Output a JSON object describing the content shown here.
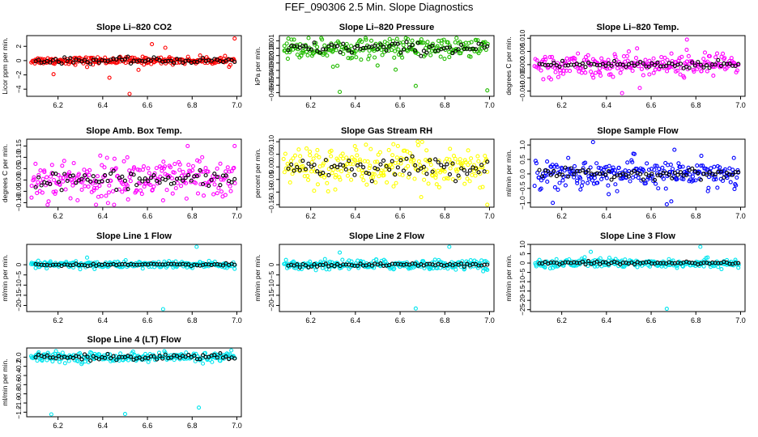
{
  "main_title": "FEF_090306  2.5 Min. Slope Diagnostics",
  "chart_data": [
    {
      "type": "scatter",
      "title": "Slope Li–820 CO2",
      "ylabel": "Licor ppm per min.",
      "xlim": [
        6.06,
        7.02
      ],
      "ylim": [
        -5,
        3.5
      ],
      "xticks": [
        "6.2",
        "6.4",
        "6.6",
        "6.8",
        "7.0"
      ],
      "yticks": [
        {
          "v": 2,
          "l": "2"
        },
        {
          "v": 0,
          "l": "0"
        },
        {
          "v": -2,
          "l": "−2"
        },
        {
          "v": -4,
          "l": "−4"
        }
      ],
      "color": "#ff0000",
      "spread": 0.25,
      "outliers": [
        [
          6.99,
          3.1
        ],
        [
          6.62,
          2.3
        ],
        [
          6.68,
          1.8
        ],
        [
          6.18,
          -1.9
        ],
        [
          6.43,
          -2.4
        ],
        [
          6.56,
          -1.3
        ],
        [
          6.33,
          -0.9
        ],
        [
          6.52,
          -4.7
        ]
      ],
      "base_amp": 0.2
    },
    {
      "type": "scatter",
      "title": "Slope Li–820 Pressure",
      "ylabel": "kPa per min.",
      "xlim": [
        6.06,
        7.02
      ],
      "ylim": [
        -0.065,
        0.017
      ],
      "xticks": [
        "6.2",
        "6.4",
        "6.6",
        "6.8",
        "7.0"
      ],
      "yticks": [
        {
          "v": 0.01,
          "l": "0.01"
        },
        {
          "v": 0,
          "l": "0.00"
        },
        {
          "v": -0.01,
          "l": "−0.01"
        },
        {
          "v": -0.02,
          "l": "−0.02"
        },
        {
          "v": -0.03,
          "l": "−0.03"
        },
        {
          "v": -0.04,
          "l": "−0.04"
        },
        {
          "v": -0.05,
          "l": "−0.05"
        },
        {
          "v": -0.06,
          "l": "−0.06"
        }
      ],
      "color": "#22bb00",
      "spread": 0.007,
      "outliers": [
        [
          6.1,
          0.013
        ],
        [
          6.33,
          -0.059
        ],
        [
          6.67,
          -0.051
        ],
        [
          6.99,
          -0.057
        ],
        [
          6.58,
          -0.029
        ],
        [
          6.82,
          -0.012
        ],
        [
          6.3,
          -0.025
        ]
      ],
      "base_amp": 0.004
    },
    {
      "type": "scatter",
      "title": "Slope Li–820 Temp.",
      "ylabel": "degrees C per min.",
      "xlim": [
        6.06,
        7.02
      ],
      "ylim": [
        -0.012,
        0.011
      ],
      "xticks": [
        "6.2",
        "6.4",
        "6.6",
        "6.8",
        "7.0"
      ],
      "yticks": [
        {
          "v": 0.01,
          "l": "0.010"
        },
        {
          "v": 0.005,
          "l": "0.005"
        },
        {
          "v": 0,
          "l": "0.000"
        },
        {
          "v": -0.005,
          "l": "−0.005"
        },
        {
          "v": -0.01,
          "l": "−0.010"
        }
      ],
      "color": "#ff00ff",
      "spread": 0.0022,
      "outliers": [
        [
          6.76,
          0.0095
        ],
        [
          6.47,
          -0.0108
        ],
        [
          6.5,
          0.005
        ],
        [
          6.37,
          -0.003
        ]
      ],
      "base_amp": 0.0008
    },
    {
      "type": "scatter",
      "title": "Slope Amb. Box Temp.",
      "ylabel": "degrees C per min.",
      "xlim": [
        6.06,
        7.02
      ],
      "ylim": [
        -0.12,
        0.18
      ],
      "xticks": [
        "6.2",
        "6.4",
        "6.6",
        "6.8",
        "7.0"
      ],
      "yticks": [
        {
          "v": 0.15,
          "l": "0.15"
        },
        {
          "v": 0.1,
          "l": "0.10"
        },
        {
          "v": 0.05,
          "l": "0.05"
        },
        {
          "v": 0,
          "l": "0.00"
        },
        {
          "v": -0.05,
          "l": "−0.05"
        },
        {
          "v": -0.1,
          "l": "−0.10"
        }
      ],
      "color": "#ff00ff",
      "spread": 0.045,
      "outliers": [
        [
          6.78,
          0.15
        ],
        [
          6.99,
          0.15
        ],
        [
          6.37,
          -0.11
        ],
        [
          6.51,
          0.1
        ],
        [
          6.67,
          -0.09
        ]
      ],
      "base_amp": 0.02
    },
    {
      "type": "scatter",
      "title": "Slope Gas Stream RH",
      "ylabel": "percent per min.",
      "xlim": [
        6.06,
        7.02
      ],
      "ylim": [
        -0.16,
        0.11
      ],
      "xticks": [
        "6.2",
        "6.4",
        "6.6",
        "6.8",
        "7.0"
      ],
      "yticks": [
        {
          "v": 0.1,
          "l": "0.10"
        },
        {
          "v": 0.05,
          "l": "0.05"
        },
        {
          "v": 0,
          "l": "0.00"
        },
        {
          "v": -0.05,
          "l": "−0.05"
        },
        {
          "v": -0.1,
          "l": "−0.10"
        },
        {
          "v": -0.15,
          "l": "−0.15"
        }
      ],
      "color": "#ffff00",
      "spread": 0.04,
      "outliers": [
        [
          6.99,
          -0.15
        ],
        [
          6.31,
          -0.09
        ],
        [
          6.57,
          0.09
        ]
      ],
      "base_amp": 0.02
    },
    {
      "type": "scatter",
      "title": "Slope Sample Flow",
      "ylabel": "ml/min per min.",
      "xlim": [
        6.06,
        7.02
      ],
      "ylim": [
        -1.15,
        1.2
      ],
      "xticks": [
        "6.2",
        "6.4",
        "6.6",
        "6.8",
        "7.0"
      ],
      "yticks": [
        {
          "v": 1,
          "l": "1.0"
        },
        {
          "v": 0.5,
          "l": "0.5"
        },
        {
          "v": 0,
          "l": "0.0"
        },
        {
          "v": -0.5,
          "l": "−0.5"
        },
        {
          "v": -1,
          "l": "−1.0"
        }
      ],
      "color": "#0000ff",
      "spread": 0.25,
      "outliers": [
        [
          6.34,
          1.1
        ],
        [
          6.16,
          -1.0
        ],
        [
          6.67,
          -1.05
        ],
        [
          6.69,
          -0.95
        ],
        [
          6.97,
          0.55
        ],
        [
          6.52,
          0.7
        ],
        [
          6.41,
          -0.7
        ]
      ],
      "base_amp": 0.08
    },
    {
      "type": "scatter",
      "title": "Slope Line 1 Flow",
      "ylabel": "ml/min per min.",
      "xlim": [
        6.06,
        7.02
      ],
      "ylim": [
        -23,
        10
      ],
      "xticks": [
        "6.2",
        "6.4",
        "6.6",
        "6.8",
        "7.0"
      ],
      "yticks": [
        {
          "v": 0,
          "l": "0"
        },
        {
          "v": -5,
          "l": "−5"
        },
        {
          "v": -10,
          "l": "−10"
        },
        {
          "v": -15,
          "l": "−15"
        },
        {
          "v": -20,
          "l": "−20"
        }
      ],
      "color": "#00e5ee",
      "spread": 0.9,
      "outliers": [
        [
          6.82,
          9
        ],
        [
          6.33,
          3.5
        ],
        [
          6.67,
          -22
        ],
        [
          6.99,
          -2
        ],
        [
          6.1,
          -1.6
        ]
      ],
      "base_amp": 0.25
    },
    {
      "type": "scatter",
      "title": "Slope Line 2 Flow",
      "ylabel": "ml/min per min.",
      "xlim": [
        6.06,
        7.02
      ],
      "ylim": [
        -23,
        10
      ],
      "xticks": [
        "6.2",
        "6.4",
        "6.6",
        "6.8",
        "7.0"
      ],
      "yticks": [
        {
          "v": 0,
          "l": "0"
        },
        {
          "v": -5,
          "l": "−5"
        },
        {
          "v": -10,
          "l": "−10"
        },
        {
          "v": -15,
          "l": "−15"
        },
        {
          "v": -20,
          "l": "−20"
        }
      ],
      "color": "#00e5ee",
      "spread": 1.2,
      "outliers": [
        [
          6.82,
          9
        ],
        [
          6.33,
          6
        ],
        [
          6.67,
          -21.5
        ],
        [
          6.99,
          -2.5
        ]
      ],
      "base_amp": 0.5
    },
    {
      "type": "scatter",
      "title": "Slope Line 3 Flow",
      "ylabel": "ml/min per min.",
      "xlim": [
        6.06,
        7.02
      ],
      "ylim": [
        -26,
        10
      ],
      "xticks": [
        "6.2",
        "6.4",
        "6.6",
        "6.8",
        "7.0"
      ],
      "yticks": [
        {
          "v": 10,
          "l": "10"
        },
        {
          "v": 5,
          "l": "5"
        },
        {
          "v": 0,
          "l": "0"
        },
        {
          "v": -5,
          "l": "−5"
        },
        {
          "v": -10,
          "l": "−10"
        },
        {
          "v": -15,
          "l": "−15"
        },
        {
          "v": -20,
          "l": "−20"
        },
        {
          "v": -25,
          "l": "−25"
        }
      ],
      "color": "#00e5ee",
      "spread": 1.2,
      "outliers": [
        [
          6.82,
          9
        ],
        [
          6.33,
          6
        ],
        [
          6.67,
          -24.5
        ],
        [
          6.99,
          -2.5
        ],
        [
          6.16,
          -2.6
        ]
      ],
      "base_amp": 0.5
    },
    {
      "type": "scatter",
      "title": "Slope Line 4 (LT) Flow",
      "ylabel": "ml/min per min.",
      "xlim": [
        6.06,
        7.02
      ],
      "ylim": [
        -1.3,
        0.2
      ],
      "xticks": [
        "6.2",
        "6.4",
        "6.6",
        "6.8",
        "7.0"
      ],
      "yticks": [
        {
          "v": 0,
          "l": "0.0"
        },
        {
          "v": -0.2,
          "l": "−0.2"
        },
        {
          "v": -0.4,
          "l": "−0.4"
        },
        {
          "v": -0.6,
          "l": "−0.6"
        },
        {
          "v": -0.8,
          "l": "−0.8"
        },
        {
          "v": -1,
          "l": "−1.0"
        },
        {
          "v": -1.2,
          "l": "−1.2"
        }
      ],
      "color": "#00e5ee",
      "spread": 0.05,
      "outliers": [
        [
          6.17,
          -1.25
        ],
        [
          6.5,
          -1.24
        ],
        [
          6.83,
          -1.1
        ]
      ],
      "base_amp": 0.03
    }
  ]
}
